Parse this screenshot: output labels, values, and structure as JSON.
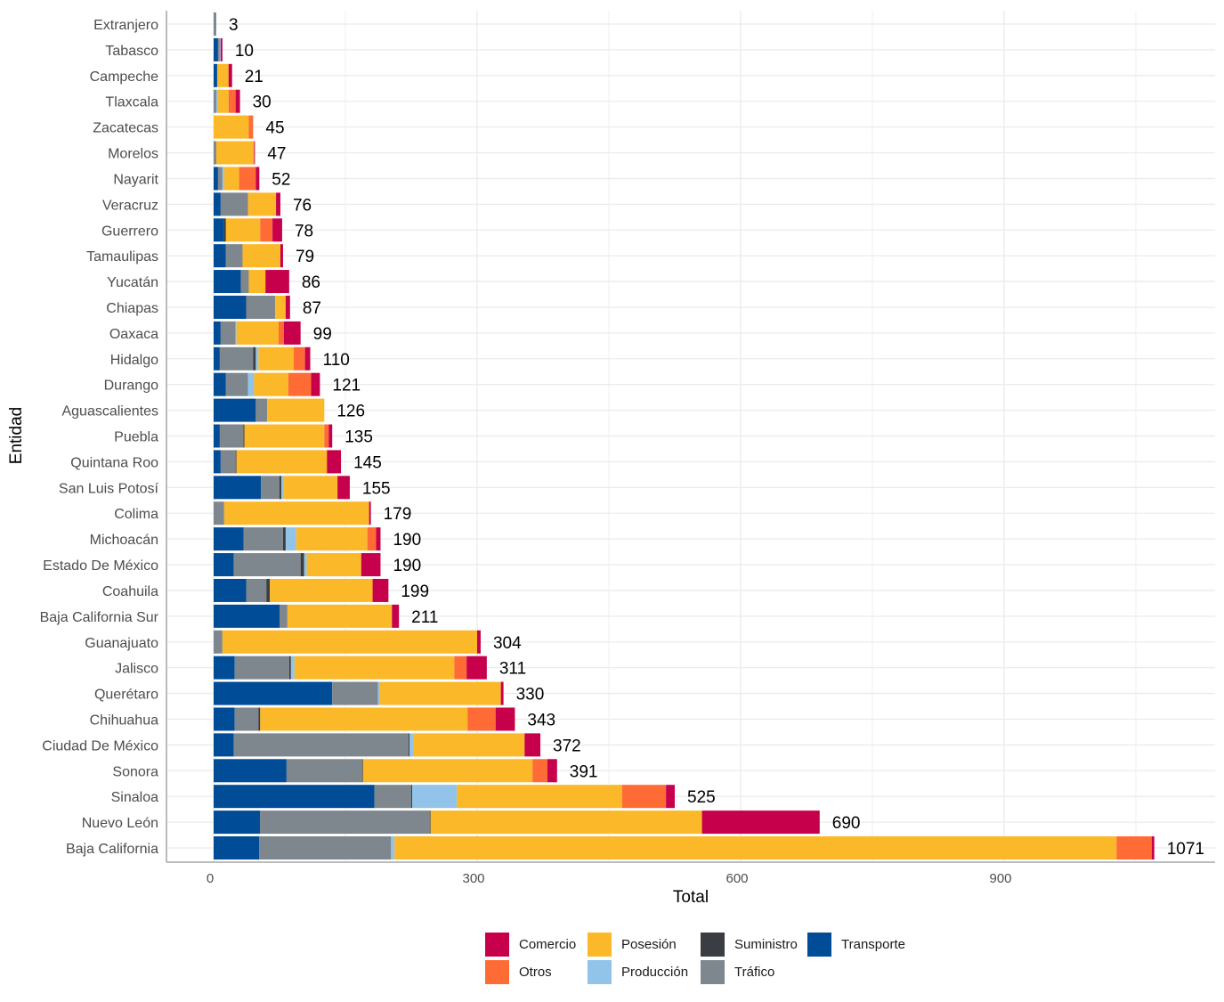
{
  "chart_data": {
    "type": "bar",
    "orientation": "horizontal",
    "stacked": true,
    "title": "",
    "xlabel": "Total",
    "ylabel": "Entidad",
    "xlim": [
      0,
      1140
    ],
    "x_ticks": [
      0,
      300,
      600,
      900
    ],
    "grid": true,
    "legend_position": "bottom",
    "categories": [
      "Extranjero",
      "Tabasco",
      "Campeche",
      "Tlaxcala",
      "Zacatecas",
      "Morelos",
      "Nayarit",
      "Veracruz",
      "Guerrero",
      "Tamaulipas",
      "Yucatán",
      "Chiapas",
      "Oaxaca",
      "Hidalgo",
      "Durango",
      "Aguascalientes",
      "Puebla",
      "Quintana Roo",
      "San Luis Potosí",
      "Colima",
      "Michoacán",
      "Estado De México",
      "Coahuila",
      "Baja California Sur",
      "Guanajuato",
      "Jalisco",
      "Querétaro",
      "Chihuahua",
      "Ciudad De México",
      "Sonora",
      "Sinaloa",
      "Nuevo León",
      "Baja California"
    ],
    "totals": [
      3,
      10,
      21,
      30,
      45,
      47,
      52,
      76,
      78,
      79,
      86,
      87,
      99,
      110,
      121,
      126,
      135,
      145,
      155,
      179,
      190,
      190,
      199,
      211,
      304,
      311,
      330,
      343,
      372,
      391,
      525,
      690,
      1071
    ],
    "series": [
      {
        "name": "Transporte",
        "color": "#004C97",
        "values": [
          0,
          5,
          4,
          0,
          0,
          0,
          5,
          8,
          12,
          14,
          31,
          37,
          8,
          7,
          14,
          48,
          7,
          8,
          54,
          0,
          34,
          23,
          37,
          75,
          0,
          24,
          135,
          24,
          23,
          83,
          183,
          53,
          52
        ]
      },
      {
        "name": "Tráfico",
        "color": "#7F878E",
        "values": [
          3,
          2,
          0,
          3,
          0,
          3,
          5,
          31,
          0,
          19,
          9,
          33,
          17,
          38,
          25,
          13,
          27,
          17,
          21,
          12,
          45,
          76,
          23,
          9,
          10,
          62,
          52,
          27,
          199,
          86,
          42,
          193,
          150
        ]
      },
      {
        "name": "Suministro",
        "color": "#3A3D41",
        "values": [
          0,
          0,
          0,
          0,
          0,
          0,
          0,
          0,
          2,
          0,
          0,
          0,
          0,
          3,
          0,
          0,
          1,
          1,
          2,
          0,
          3,
          4,
          4,
          0,
          0,
          2,
          0,
          2,
          1,
          1,
          1,
          1,
          0
        ]
      },
      {
        "name": "Producción",
        "color": "#92C3E8",
        "values": [
          0,
          1,
          0,
          2,
          0,
          0,
          2,
          0,
          0,
          0,
          0,
          0,
          1,
          3,
          7,
          0,
          0,
          0,
          3,
          0,
          12,
          3,
          0,
          0,
          0,
          4,
          2,
          0,
          4,
          0,
          51,
          0,
          4
        ]
      },
      {
        "name": "Posesión",
        "color": "#FBB829",
        "values": [
          0,
          0,
          13,
          12,
          40,
          43,
          17,
          32,
          39,
          43,
          19,
          12,
          48,
          40,
          39,
          65,
          91,
          103,
          61,
          165,
          81,
          62,
          117,
          119,
          290,
          182,
          138,
          236,
          127,
          193,
          188,
          309,
          822
        ]
      },
      {
        "name": "Otros",
        "color": "#FF6B35",
        "values": [
          0,
          0,
          0,
          8,
          5,
          0,
          19,
          0,
          14,
          0,
          0,
          0,
          6,
          13,
          26,
          0,
          5,
          0,
          0,
          0,
          10,
          0,
          0,
          0,
          0,
          14,
          0,
          32,
          0,
          17,
          50,
          0,
          40
        ]
      },
      {
        "name": "Comercio",
        "color": "#C7004C",
        "values": [
          0,
          2,
          4,
          5,
          0,
          1,
          4,
          5,
          11,
          3,
          27,
          5,
          19,
          6,
          10,
          0,
          4,
          16,
          14,
          2,
          5,
          22,
          18,
          8,
          4,
          23,
          3,
          22,
          18,
          11,
          10,
          134,
          3
        ]
      }
    ],
    "legend": {
      "rows": [
        [
          "Comercio",
          "Posesión",
          "Suministro",
          "Transporte"
        ],
        [
          "Otros",
          "Producción",
          "Tráfico"
        ]
      ]
    }
  },
  "colors": {
    "grid": "#EBEBEB",
    "axis": "#A6A6A6",
    "background": "#FFFFFF"
  }
}
